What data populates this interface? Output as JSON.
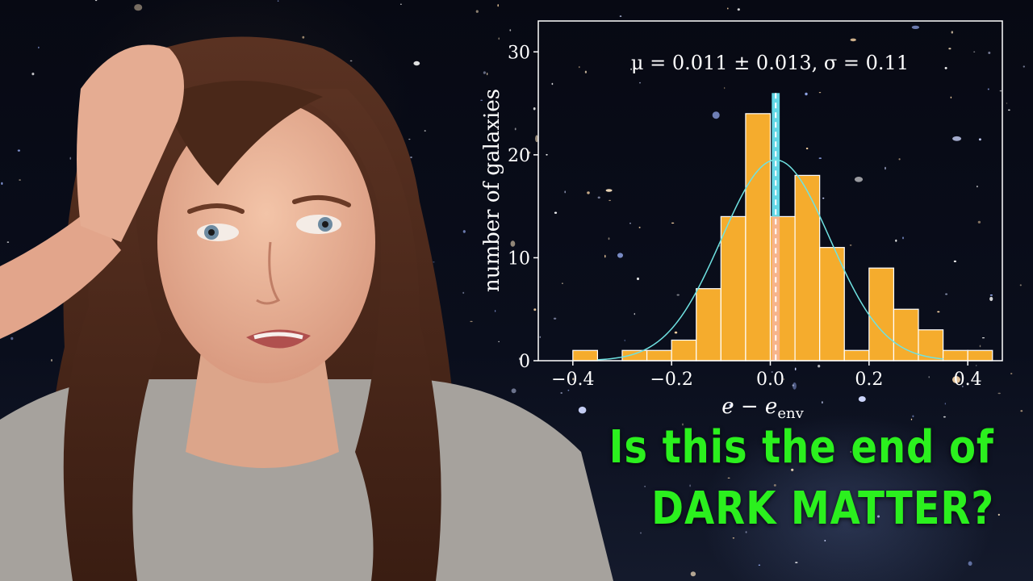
{
  "headline": {
    "line1": "Is this the end of",
    "line2": "DARK MATTER?",
    "color": "#2bf01e"
  },
  "chart_data": {
    "type": "bar",
    "title": "μ = 0.011 ± 0.013, σ = 0.11",
    "xlabel": "e − e",
    "xlabel_sub": "env",
    "ylabel": "number of galaxies",
    "xlim": [
      -0.47,
      0.47
    ],
    "ylim": [
      0,
      33
    ],
    "xticks": [
      -0.4,
      -0.2,
      0.0,
      0.2,
      0.4
    ],
    "xtick_labels": [
      "−0.4",
      "−0.2",
      "0.0",
      "0.2",
      "0.4"
    ],
    "yticks": [
      0,
      10,
      20,
      30
    ],
    "ytick_labels": [
      "0",
      "10",
      "20",
      "30"
    ],
    "grid": false,
    "bin_width": 0.05,
    "bins": [
      {
        "x0": -0.4,
        "x1": -0.35,
        "count": 1
      },
      {
        "x0": -0.35,
        "x1": -0.3,
        "count": 0
      },
      {
        "x0": -0.3,
        "x1": -0.25,
        "count": 1
      },
      {
        "x0": -0.25,
        "x1": -0.2,
        "count": 1
      },
      {
        "x0": -0.2,
        "x1": -0.15,
        "count": 2
      },
      {
        "x0": -0.15,
        "x1": -0.1,
        "count": 7
      },
      {
        "x0": -0.1,
        "x1": -0.05,
        "count": 14
      },
      {
        "x0": -0.05,
        "x1": 0.0,
        "count": 24
      },
      {
        "x0": 0.0,
        "x1": 0.05,
        "count": 14
      },
      {
        "x0": 0.05,
        "x1": 0.1,
        "count": 18
      },
      {
        "x0": 0.1,
        "x1": 0.15,
        "count": 11
      },
      {
        "x0": 0.15,
        "x1": 0.2,
        "count": 1
      },
      {
        "x0": 0.2,
        "x1": 0.25,
        "count": 9
      },
      {
        "x0": 0.25,
        "x1": 0.3,
        "count": 5
      },
      {
        "x0": 0.3,
        "x1": 0.35,
        "count": 3
      },
      {
        "x0": 0.35,
        "x1": 0.4,
        "count": 1
      },
      {
        "x0": 0.4,
        "x1": 0.45,
        "count": 1
      }
    ],
    "gaussian_fit": {
      "mu": 0.011,
      "mu_err": 0.013,
      "sigma": 0.11,
      "peak": 19.5
    },
    "mean_band": {
      "x0": 0.003,
      "x1": 0.019,
      "y0": 14,
      "y1": 26
    },
    "mean_line": {
      "x": 0.011
    },
    "colors": {
      "bar": "#f5ac2d",
      "bar_edge": "#ffffff",
      "fit": "#6fe2e2",
      "band": "#63d7e6",
      "band_lower": "#f7b596",
      "mean_line": "#ffffff",
      "frame": "#ffffff",
      "text": "#ffffff"
    }
  }
}
